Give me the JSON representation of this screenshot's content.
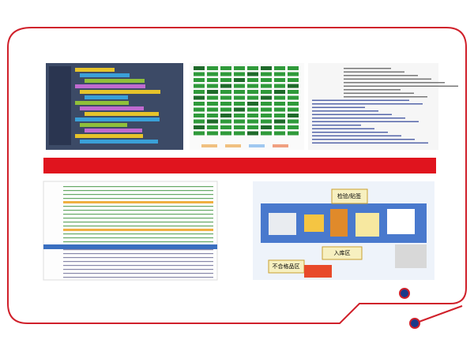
{
  "diagram": {
    "labels": [
      "检验/贴签",
      "入库区",
      "不合格品区"
    ]
  }
}
